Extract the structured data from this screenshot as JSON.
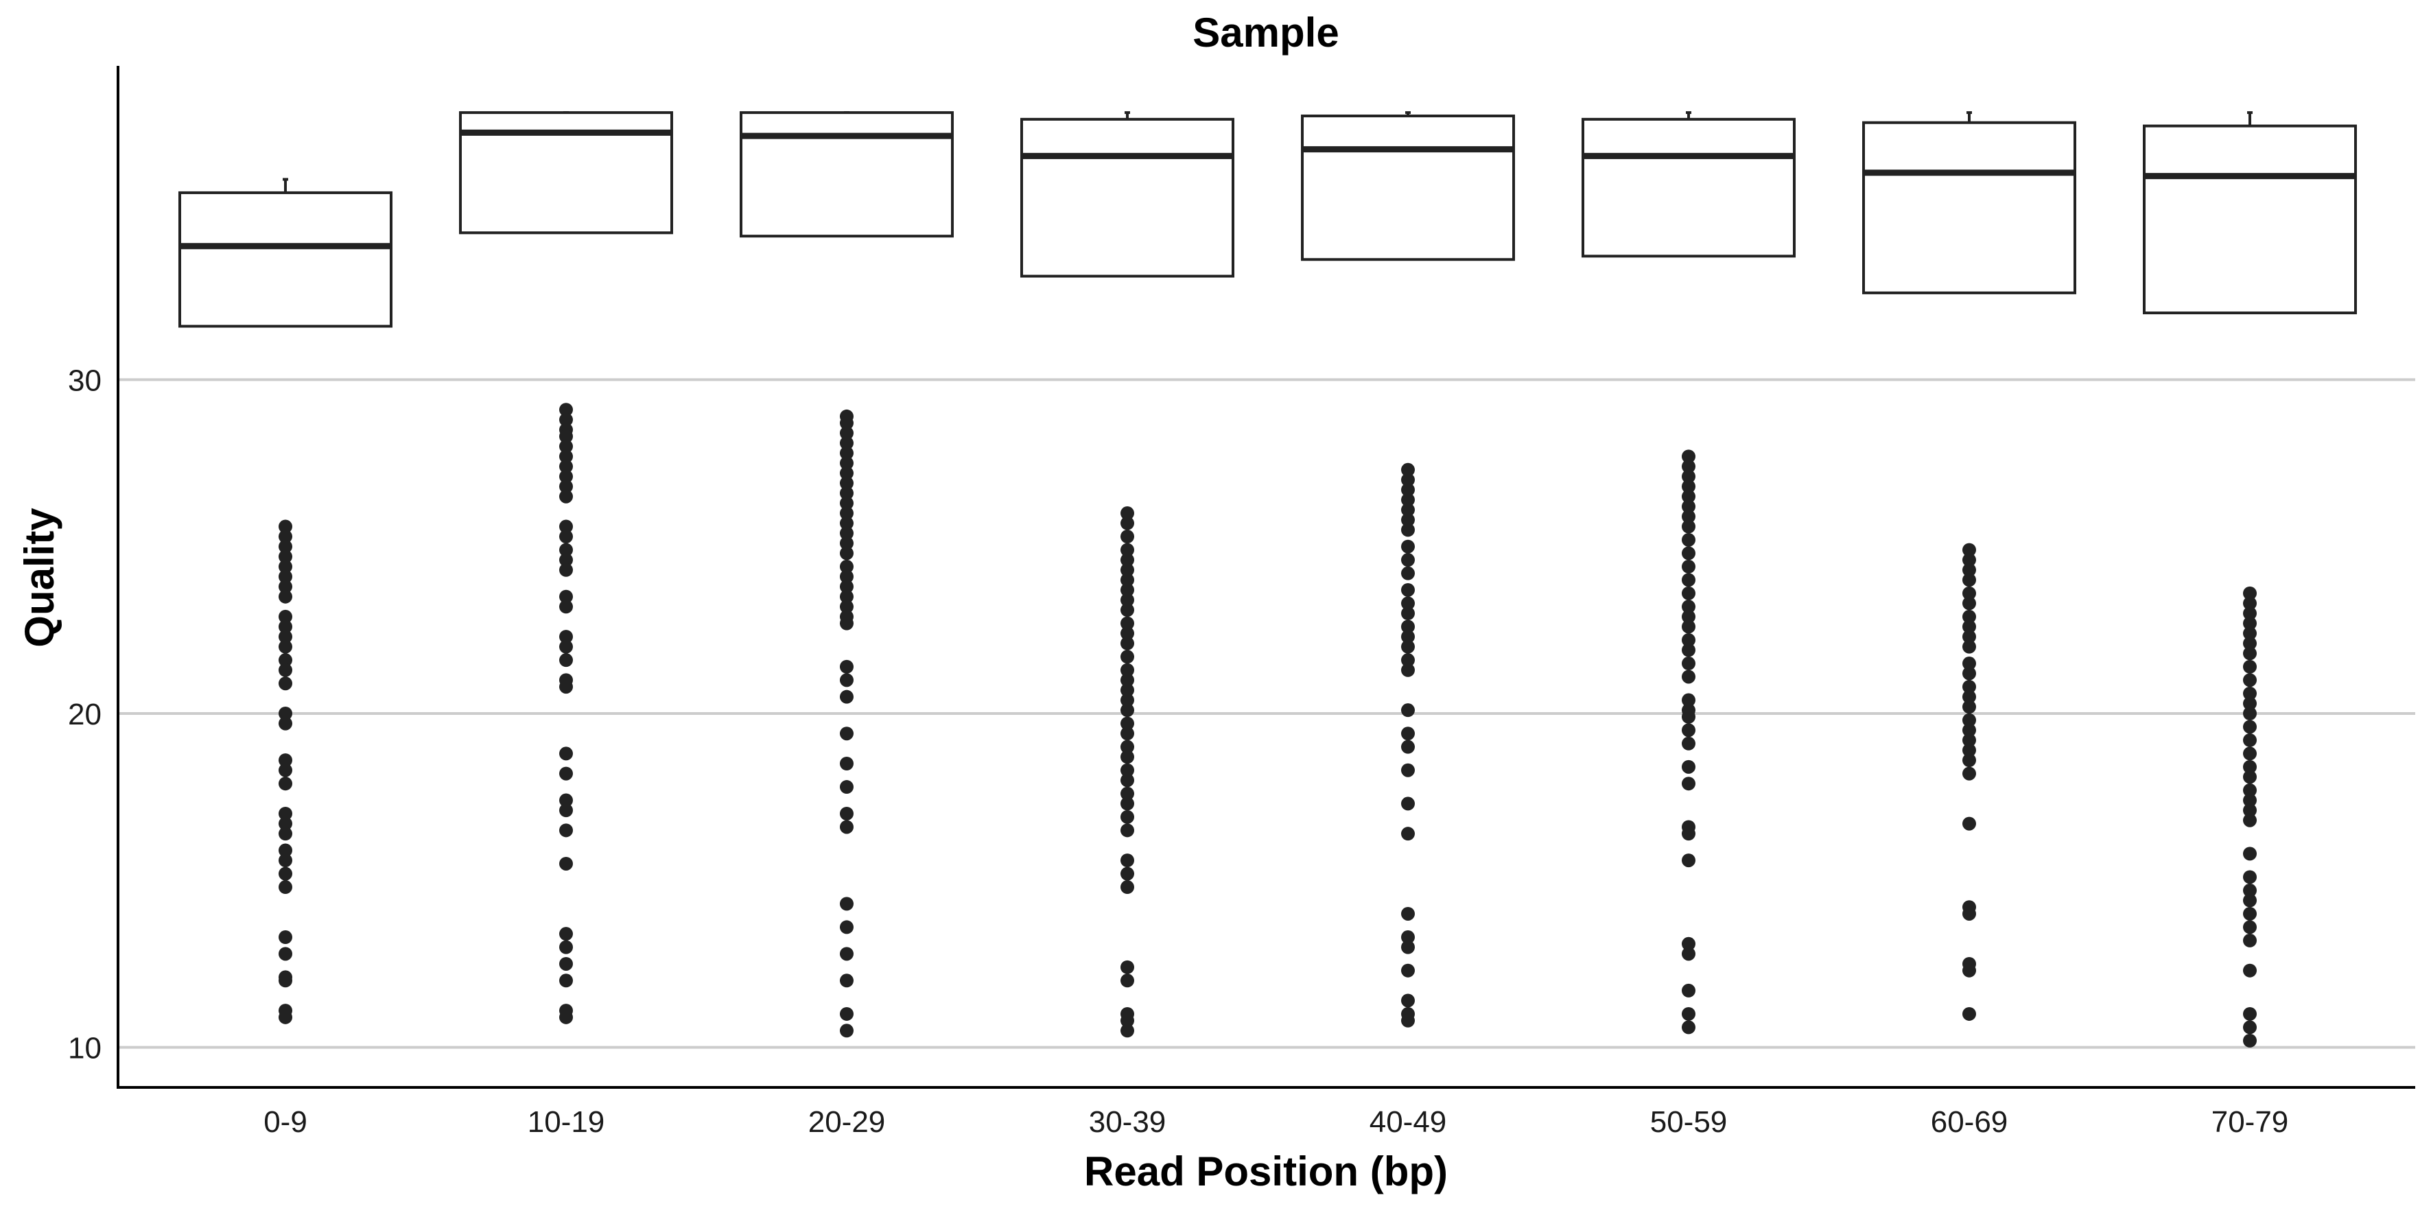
{
  "chart_data": {
    "type": "box",
    "title": "Sample",
    "xlabel": "Read Position (bp)",
    "ylabel": "Quality",
    "ylim": [
      8.8,
      39.4
    ],
    "yticks": [
      10,
      20,
      30
    ],
    "grid": "horizontal",
    "colors": {
      "box_fill": "#ffffff",
      "box_stroke": "#222222",
      "grid": "#cccccc",
      "points": "#222222"
    },
    "categories": [
      "0-9",
      "10-19",
      "20-29",
      "30-39",
      "40-49",
      "50-59",
      "60-69",
      "70-79"
    ],
    "boxes": [
      {
        "category": "0-9",
        "min": 31.6,
        "q1": 31.6,
        "median": 34.0,
        "q3": 35.6,
        "max": 36.0,
        "outliers": [
          25.6,
          25.3,
          25.0,
          24.7,
          24.4,
          24.1,
          23.8,
          23.5,
          22.9,
          22.6,
          22.3,
          22.0,
          21.6,
          21.3,
          20.9,
          20.0,
          19.7,
          18.6,
          18.3,
          17.9,
          17.0,
          16.7,
          16.4,
          15.9,
          15.6,
          15.2,
          14.8,
          13.3,
          12.8,
          12.1,
          12.0,
          11.1,
          10.9
        ]
      },
      {
        "category": "10-19",
        "min": 34.4,
        "q1": 34.4,
        "median": 37.4,
        "q3": 38.0,
        "max": 38.0,
        "outliers": [
          29.1,
          28.8,
          28.5,
          28.3,
          28.0,
          27.7,
          27.4,
          27.1,
          26.8,
          26.5,
          25.6,
          25.3,
          24.9,
          24.6,
          24.3,
          23.5,
          23.2,
          22.3,
          22.0,
          21.6,
          21.0,
          20.8,
          18.8,
          18.2,
          17.4,
          17.1,
          16.5,
          15.5,
          13.4,
          13.0,
          12.5,
          12.0,
          11.1,
          10.9
        ]
      },
      {
        "category": "20-29",
        "min": 34.3,
        "q1": 34.3,
        "median": 37.3,
        "q3": 38.0,
        "max": 38.0,
        "outliers": [
          28.9,
          28.7,
          28.4,
          28.1,
          27.8,
          27.5,
          27.2,
          26.9,
          26.6,
          26.3,
          26.0,
          25.7,
          25.4,
          25.1,
          24.8,
          24.4,
          24.1,
          23.8,
          23.5,
          23.2,
          22.9,
          22.7,
          21.4,
          21.0,
          20.5,
          19.4,
          18.5,
          17.8,
          17.0,
          16.6,
          14.3,
          13.6,
          12.8,
          12.0,
          11.0,
          10.5
        ]
      },
      {
        "category": "30-39",
        "min": 33.1,
        "q1": 33.1,
        "median": 36.7,
        "q3": 37.8,
        "max": 38.0,
        "outliers": [
          26.0,
          25.7,
          25.3,
          24.9,
          24.6,
          24.3,
          24.0,
          23.7,
          23.4,
          23.1,
          22.7,
          22.4,
          22.1,
          21.7,
          21.3,
          21.0,
          20.7,
          20.4,
          20.1,
          19.7,
          19.4,
          19.0,
          18.7,
          18.3,
          18.0,
          17.6,
          17.3,
          16.9,
          16.5,
          15.6,
          15.2,
          14.8,
          12.4,
          12.0,
          11.0,
          10.8,
          10.5
        ]
      },
      {
        "category": "40-49",
        "min": 33.6,
        "q1": 33.6,
        "median": 36.9,
        "q3": 37.9,
        "max": 38.0,
        "outliers": [
          27.3,
          27.0,
          26.7,
          26.4,
          26.1,
          25.8,
          25.5,
          25.0,
          24.6,
          24.2,
          23.7,
          23.3,
          23.0,
          22.6,
          22.3,
          22.0,
          21.6,
          21.3,
          20.1,
          19.4,
          19.0,
          18.3,
          17.3,
          16.4,
          14.0,
          13.3,
          13.0,
          12.3,
          11.4,
          11.0,
          10.8
        ]
      },
      {
        "category": "50-59",
        "min": 33.7,
        "q1": 33.7,
        "median": 36.7,
        "q3": 37.8,
        "max": 38.0,
        "outliers": [
          27.7,
          27.4,
          27.1,
          26.8,
          26.5,
          26.2,
          25.9,
          25.6,
          25.2,
          24.8,
          24.4,
          24.0,
          23.6,
          23.2,
          22.9,
          22.6,
          22.2,
          21.9,
          21.5,
          21.1,
          20.4,
          20.1,
          19.9,
          19.5,
          19.1,
          18.4,
          17.9,
          16.6,
          16.4,
          15.6,
          13.1,
          12.8,
          11.7,
          11.0,
          10.6
        ]
      },
      {
        "category": "60-69",
        "min": 32.6,
        "q1": 32.6,
        "median": 36.2,
        "q3": 37.7,
        "max": 38.0,
        "outliers": [
          24.9,
          24.6,
          24.3,
          24.0,
          23.6,
          23.3,
          22.9,
          22.6,
          22.3,
          22.0,
          21.5,
          21.2,
          20.8,
          20.5,
          20.2,
          19.8,
          19.5,
          19.2,
          18.9,
          18.6,
          18.2,
          16.7,
          14.2,
          14.0,
          12.5,
          12.3,
          11.0
        ]
      },
      {
        "category": "70-79",
        "min": 32.0,
        "q1": 32.0,
        "median": 36.1,
        "q3": 37.6,
        "max": 38.0,
        "outliers": [
          23.6,
          23.3,
          23.0,
          22.7,
          22.4,
          22.1,
          21.8,
          21.4,
          21.0,
          20.6,
          20.3,
          20.0,
          19.6,
          19.2,
          18.8,
          18.4,
          18.1,
          17.7,
          17.4,
          17.1,
          16.8,
          15.8,
          15.1,
          14.7,
          14.4,
          14.0,
          13.6,
          13.2,
          12.3,
          11.0,
          10.6,
          10.2
        ]
      }
    ]
  }
}
